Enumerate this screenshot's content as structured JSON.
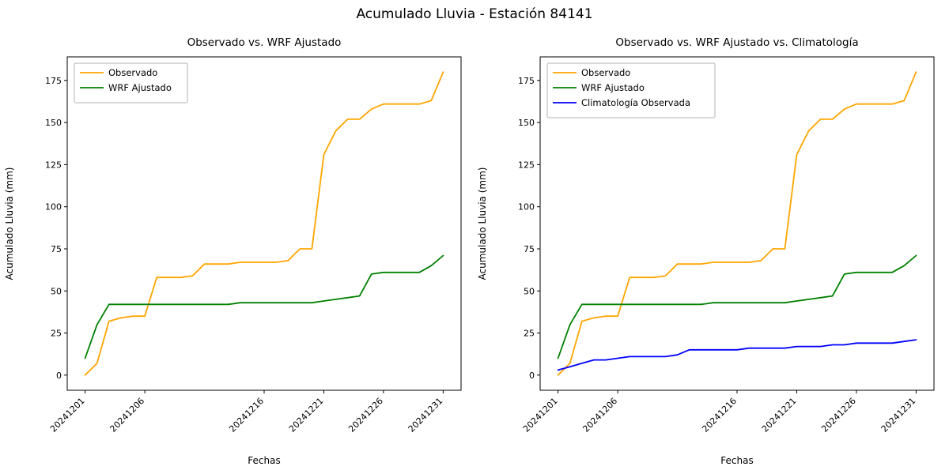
{
  "figure": {
    "suptitle": "Acumulado Lluvia - Estación 84141"
  },
  "chart_data": [
    {
      "type": "line",
      "title": "Observado vs. WRF Ajustado",
      "xlabel": "Fechas",
      "ylabel": "Acumulado Lluvia (mm)",
      "grid": false,
      "legend_position": "upper left",
      "xlim": [
        -0.5,
        32.5
      ],
      "ylim": [
        -9,
        189
      ],
      "y_ticks": [
        0,
        25,
        50,
        75,
        100,
        125,
        150,
        175
      ],
      "x_ticks": [
        {
          "day": 1,
          "label": "20241201"
        },
        {
          "day": 6,
          "label": "20241206"
        },
        {
          "day": 16,
          "label": "20241216"
        },
        {
          "day": 21,
          "label": "20241221"
        },
        {
          "day": 26,
          "label": "20241226"
        },
        {
          "day": 31,
          "label": "20241231"
        }
      ],
      "series": [
        {
          "name": "Observado",
          "color": "#FFA500",
          "values": [
            0,
            7,
            32,
            34,
            35,
            35,
            58,
            58,
            58,
            59,
            66,
            66,
            66,
            67,
            67,
            67,
            67,
            68,
            75,
            75,
            131,
            145,
            152,
            152,
            158,
            161,
            161,
            161,
            161,
            163,
            180
          ]
        },
        {
          "name": "WRF Ajustado",
          "color": "#008000",
          "values": [
            10,
            30,
            42,
            42,
            42,
            42,
            42,
            42,
            42,
            42,
            42,
            42,
            42,
            43,
            43,
            43,
            43,
            43,
            43,
            43,
            44,
            45,
            46,
            47,
            60,
            61,
            61,
            61,
            61,
            65,
            71
          ]
        }
      ]
    },
    {
      "type": "line",
      "title": "Observado vs. WRF Ajustado vs. Climatología",
      "xlabel": "Fechas",
      "ylabel": "Acumulado Lluvia (mm)",
      "grid": false,
      "legend_position": "upper left",
      "xlim": [
        -0.5,
        32.5
      ],
      "ylim": [
        -9,
        189
      ],
      "y_ticks": [
        0,
        25,
        50,
        75,
        100,
        125,
        150,
        175
      ],
      "x_ticks": [
        {
          "day": 1,
          "label": "20241201"
        },
        {
          "day": 6,
          "label": "20241206"
        },
        {
          "day": 16,
          "label": "20241216"
        },
        {
          "day": 21,
          "label": "20241221"
        },
        {
          "day": 26,
          "label": "20241226"
        },
        {
          "day": 31,
          "label": "20241231"
        }
      ],
      "series": [
        {
          "name": "Observado",
          "color": "#FFA500",
          "values": [
            0,
            7,
            32,
            34,
            35,
            35,
            58,
            58,
            58,
            59,
            66,
            66,
            66,
            67,
            67,
            67,
            67,
            68,
            75,
            75,
            131,
            145,
            152,
            152,
            158,
            161,
            161,
            161,
            161,
            163,
            180
          ]
        },
        {
          "name": "WRF Ajustado",
          "color": "#008000",
          "values": [
            10,
            30,
            42,
            42,
            42,
            42,
            42,
            42,
            42,
            42,
            42,
            42,
            42,
            43,
            43,
            43,
            43,
            43,
            43,
            43,
            44,
            45,
            46,
            47,
            60,
            61,
            61,
            61,
            61,
            65,
            71
          ]
        },
        {
          "name": "Climatología Observada",
          "color": "#0000FF",
          "values": [
            3,
            5,
            7,
            9,
            9,
            10,
            11,
            11,
            11,
            11,
            12,
            15,
            15,
            15,
            15,
            15,
            16,
            16,
            16,
            16,
            17,
            17,
            17,
            18,
            18,
            19,
            19,
            19,
            19,
            20,
            21
          ]
        }
      ]
    }
  ]
}
